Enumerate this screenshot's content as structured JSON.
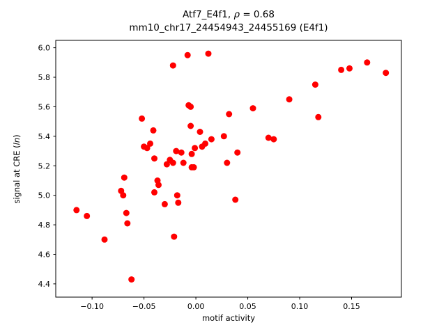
{
  "chart_data": {
    "type": "scatter",
    "title_prefix": "Atf7_E4f1, ",
    "title_rho": "ρ",
    "title_suffix": " = 0.68",
    "subtitle": "mm10_chr17_24454943_24455169 (E4f1)",
    "xlabel": "motif activity",
    "ylabel_prefix": "signal at CRE (",
    "ylabel_italic": "ln",
    "ylabel_suffix": ")",
    "marker_color": "#ff0000",
    "axis_color": "#000000",
    "background_color": "#ffffff",
    "legend": "none",
    "grid": false,
    "xlim": [
      -0.135,
      0.198
    ],
    "ylim": [
      4.31,
      6.05
    ],
    "xtick_values": [
      -0.1,
      -0.05,
      0.0,
      0.05,
      0.1,
      0.15
    ],
    "xtick_labels": [
      "−0.10",
      "−0.05",
      "0.00",
      "0.05",
      "0.10",
      "0.15"
    ],
    "ytick_values": [
      4.4,
      4.6,
      4.8,
      5.0,
      5.2,
      5.4,
      5.6,
      5.8,
      6.0
    ],
    "ytick_labels": [
      "4.4",
      "4.6",
      "4.8",
      "5.0",
      "5.2",
      "5.4",
      "5.6",
      "5.8",
      "6.0"
    ],
    "points": [
      [
        -0.115,
        4.9
      ],
      [
        -0.105,
        4.86
      ],
      [
        -0.088,
        4.7
      ],
      [
        -0.072,
        5.03
      ],
      [
        -0.07,
        5.0
      ],
      [
        -0.069,
        5.12
      ],
      [
        -0.067,
        4.88
      ],
      [
        -0.066,
        4.81
      ],
      [
        -0.062,
        4.43
      ],
      [
        -0.052,
        5.52
      ],
      [
        -0.05,
        5.33
      ],
      [
        -0.047,
        5.32
      ],
      [
        -0.044,
        5.35
      ],
      [
        -0.041,
        5.44
      ],
      [
        -0.04,
        5.25
      ],
      [
        -0.04,
        5.02
      ],
      [
        -0.037,
        5.1
      ],
      [
        -0.036,
        5.07
      ],
      [
        -0.03,
        4.94
      ],
      [
        -0.028,
        5.21
      ],
      [
        -0.025,
        5.24
      ],
      [
        -0.022,
        5.88
      ],
      [
        -0.022,
        5.22
      ],
      [
        -0.021,
        4.72
      ],
      [
        -0.019,
        5.3
      ],
      [
        -0.018,
        5.0
      ],
      [
        -0.017,
        4.95
      ],
      [
        -0.014,
        5.29
      ],
      [
        -0.012,
        5.22
      ],
      [
        -0.008,
        5.95
      ],
      [
        -0.007,
        5.61
      ],
      [
        -0.005,
        5.6
      ],
      [
        -0.005,
        5.47
      ],
      [
        -0.004,
        5.28
      ],
      [
        -0.004,
        5.19
      ],
      [
        -0.002,
        5.19
      ],
      [
        -0.001,
        5.32
      ],
      [
        0.004,
        5.43
      ],
      [
        0.006,
        5.33
      ],
      [
        0.009,
        5.35
      ],
      [
        0.012,
        5.96
      ],
      [
        0.015,
        5.38
      ],
      [
        0.027,
        5.4
      ],
      [
        0.03,
        5.22
      ],
      [
        0.032,
        5.55
      ],
      [
        0.038,
        4.97
      ],
      [
        0.04,
        5.29
      ],
      [
        0.055,
        5.59
      ],
      [
        0.07,
        5.39
      ],
      [
        0.075,
        5.38
      ],
      [
        0.09,
        5.65
      ],
      [
        0.115,
        5.75
      ],
      [
        0.118,
        5.53
      ],
      [
        0.14,
        5.85
      ],
      [
        0.148,
        5.86
      ],
      [
        0.165,
        5.9
      ],
      [
        0.183,
        5.83
      ]
    ]
  }
}
